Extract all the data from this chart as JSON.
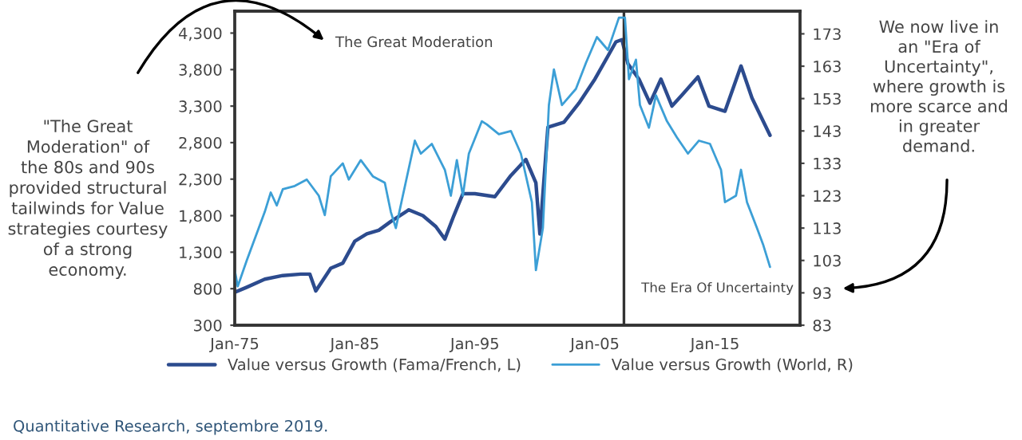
{
  "chart_data": {
    "type": "line",
    "series": [
      {
        "name": "Value versus Growth (Fama/French, L)",
        "color": "#2c4b8e",
        "axis": "y",
        "x": [
          "1975-01",
          "1976-01",
          "1977-07",
          "1979-01",
          "1980-07",
          "1981-04",
          "1981-10",
          "1983-01",
          "1984-01",
          "1985-01",
          "1986-01",
          "1987-01",
          "1988-01",
          "1989-07",
          "1990-09",
          "1991-10",
          "1992-07",
          "1993-04",
          "1994-01",
          "1995-01",
          "1996-09",
          "1998-01",
          "1999-04",
          "2000-02",
          "2000-06",
          "2001-02",
          "2002-06",
          "2003-09",
          "2005-01",
          "2006-10",
          "2007-04",
          "2007-10",
          "2008-09",
          "2009-08",
          "2010-07",
          "2011-06",
          "2012-04",
          "2013-08",
          "2014-07",
          "2015-11",
          "2017-03",
          "2018-02",
          "2019-08"
        ],
        "values": [
          750,
          820,
          930,
          980,
          1000,
          1000,
          770,
          1080,
          1150,
          1450,
          1550,
          1600,
          1720,
          1880,
          1800,
          1650,
          1480,
          1800,
          2100,
          2100,
          2060,
          2350,
          2570,
          2250,
          1550,
          3010,
          3080,
          3340,
          3670,
          4180,
          4210,
          3880,
          3670,
          3340,
          3670,
          3300,
          3450,
          3700,
          3300,
          3230,
          3850,
          3410,
          2900
        ]
      },
      {
        "name": "Value versus Growth (World, R)",
        "color": "#3c9fd6",
        "axis": "y2",
        "x": [
          "1975-01",
          "1975-04",
          "1976-01",
          "1977-07",
          "1978-01",
          "1978-07",
          "1979-01",
          "1980-01",
          "1981-01",
          "1982-01",
          "1982-07",
          "1983-01",
          "1984-01",
          "1984-07",
          "1985-07",
          "1986-07",
          "1987-07",
          "1988-01",
          "1988-06",
          "1989-01",
          "1990-01",
          "1990-07",
          "1991-06",
          "1992-07",
          "1993-01",
          "1993-07",
          "1994-01",
          "1994-07",
          "1995-08",
          "1996-01",
          "1997-01",
          "1998-01",
          "1998-11",
          "1999-10",
          "2000-02",
          "2000-09",
          "2001-03",
          "2001-08",
          "2002-04",
          "2003-06",
          "2004-04",
          "2005-03",
          "2006-02",
          "2007-01",
          "2007-07",
          "2007-11",
          "2008-06",
          "2008-10",
          "2009-07",
          "2010-02",
          "2011-01",
          "2011-11",
          "2012-10",
          "2013-09",
          "2014-08",
          "2015-07",
          "2015-11",
          "2016-10",
          "2017-03",
          "2017-09",
          "2018-07",
          "2019-01",
          "2019-08"
        ],
        "values": [
          100,
          95,
          103,
          118,
          124,
          120,
          125,
          126,
          128,
          123,
          117,
          129,
          133,
          128,
          134,
          129,
          127,
          118,
          113,
          123,
          140,
          136,
          139,
          131,
          123,
          134,
          123,
          136,
          146,
          145,
          142,
          143,
          136,
          121,
          100,
          113,
          151,
          162,
          151,
          156,
          164,
          172,
          168,
          178,
          178,
          159,
          165,
          151,
          144,
          154,
          146,
          141,
          136,
          140,
          139,
          131,
          121,
          123,
          131,
          121,
          113,
          108,
          101
        ]
      }
    ],
    "xlim": [
      "1975-01",
      "2022-02"
    ],
    "xticks": [
      {
        "value": "1975-01",
        "label": "Jan-75"
      },
      {
        "value": "1985-01",
        "label": "Jan-85"
      },
      {
        "value": "1995-01",
        "label": "Jan-95"
      },
      {
        "value": "2005-01",
        "label": "Jan-05"
      },
      {
        "value": "2015-01",
        "label": "Jan-15"
      }
    ],
    "ylim": [
      300,
      4600
    ],
    "yticks": [
      300,
      800,
      {
        "value": 1300,
        "label": "1,300"
      },
      {
        "value": 1800,
        "label": "1,800"
      },
      {
        "value": 2300,
        "label": "2,300"
      },
      {
        "value": 2800,
        "label": "2,800"
      },
      {
        "value": 3300,
        "label": "3,300"
      },
      {
        "value": 3800,
        "label": "3,800"
      },
      {
        "value": 4300,
        "label": "4,300"
      }
    ],
    "y2lim": [
      83,
      180
    ],
    "y2ticks": [
      83,
      93,
      103,
      113,
      123,
      133,
      143,
      153,
      163,
      173
    ],
    "ref_lines": [
      {
        "axis": "x",
        "value": "2007-06",
        "color": "#333333"
      }
    ],
    "legend": "bottom",
    "grid": false,
    "annotations": [
      "\"The Great\nModeration\" of\nthe 80s and 90s\nprovided structural\ntailwinds for Value\nstrategies courtesy\nof a strong\neconomy.",
      "We now live in\nan \"Era of\nUncertainty\",\nwhere growth is\nmore scarce and\nin greater\ndemand.",
      "The Great Moderation",
      "The Era Of Uncertainty",
      "Quantitative Research, septembre 2019."
    ]
  }
}
